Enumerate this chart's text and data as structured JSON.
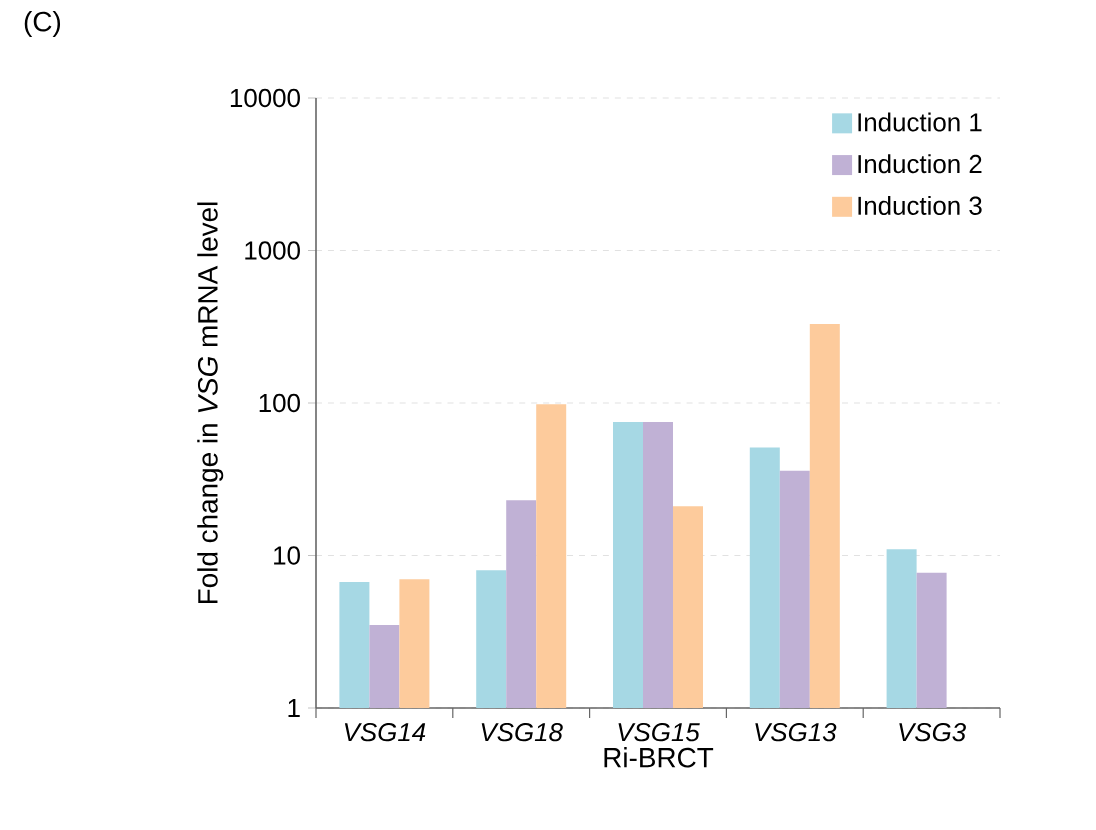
{
  "chart_data": {
    "type": "bar",
    "annotations": [
      "(C)"
    ],
    "xlabel": "Ri-BRCT",
    "ylabel": "Fold change in *VSG* mRNA level",
    "categories": [
      "VSG14",
      "VSG18",
      "VSG15",
      "VSG13",
      "VSG3"
    ],
    "series": [
      {
        "name": "Induction 1",
        "color": "#a6d8e4",
        "values": [
          6.7,
          8.0,
          75,
          51,
          11
        ]
      },
      {
        "name": "Induction 2",
        "color": "#c0b1d5",
        "values": [
          3.5,
          23,
          75,
          36,
          7.7
        ]
      },
      {
        "name": "Induction 3",
        "color": "#fdcb9c",
        "values": [
          7.0,
          98,
          21,
          330,
          null
        ]
      }
    ],
    "log": "y",
    "ylim": [
      1,
      10000
    ],
    "yticks": [
      1,
      10,
      100,
      1000,
      10000
    ],
    "grid": "y",
    "legend": "top right"
  }
}
